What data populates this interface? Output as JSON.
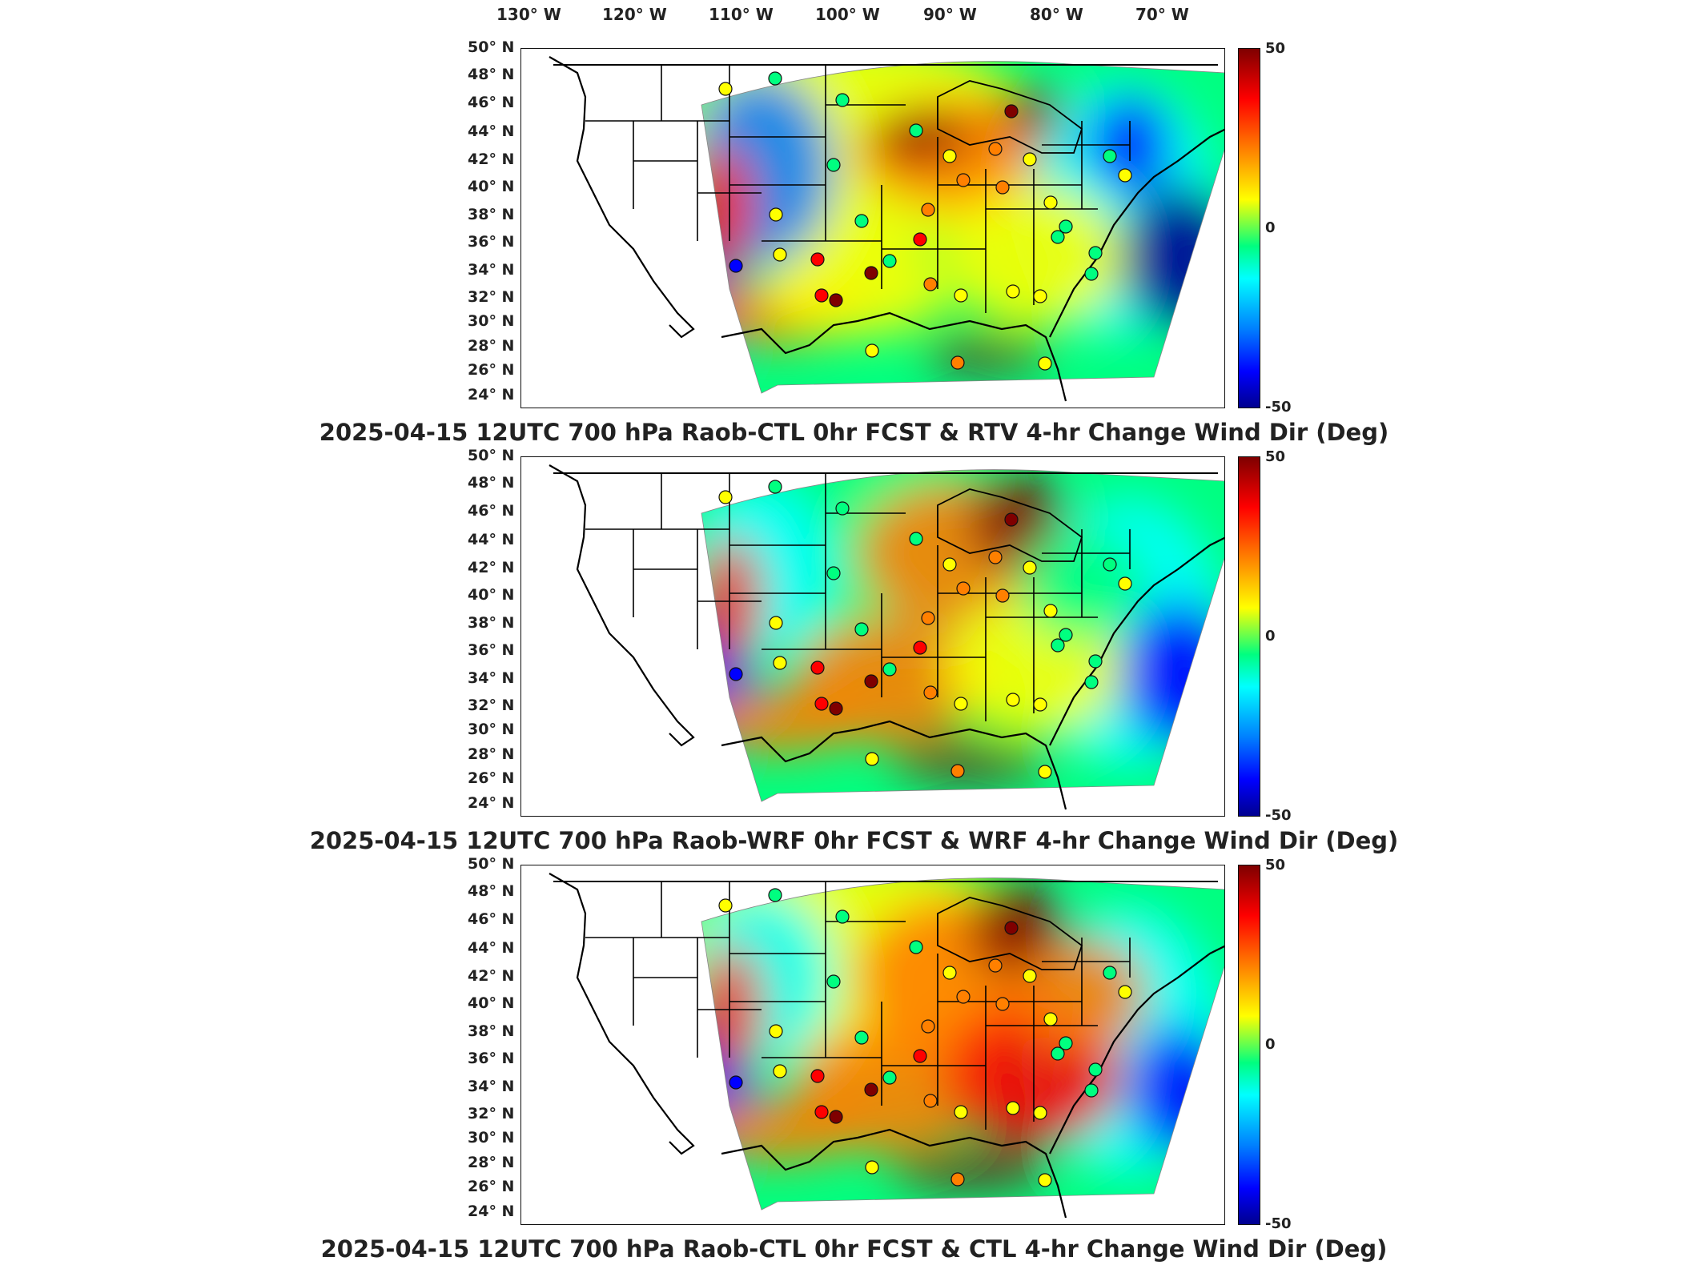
{
  "colormap": [
    "#00008f",
    "#0000ff",
    "#0080ff",
    "#00ffff",
    "#00ff80",
    "#ffff00",
    "#ff8000",
    "#ff0000",
    "#7f0000"
  ],
  "lon_labels": [
    "130° W",
    "120° W",
    "110° W",
    "100° W",
    "90° W",
    "80° W",
    "70° W"
  ],
  "lat_labels": [
    "50° N",
    "48° N",
    "46° N",
    "44° N",
    "42° N",
    "40° N",
    "38° N",
    "36° N",
    "34° N",
    "32° N",
    "30° N",
    "28° N",
    "26° N",
    "24° N"
  ],
  "colorbar": {
    "max": "50",
    "mid": "0",
    "min": "-50"
  },
  "panels": [
    {
      "title": "2025-04-15 12UTC 700 hPa Raob-CTL 0hr FCST & RTV 4-hr Change Wind Dir (Deg)"
    },
    {
      "title": "2025-04-15 12UTC 700 hPa Raob-WRF 0hr FCST & WRF 4-hr Change Wind Dir (Deg)"
    },
    {
      "title": "2025-04-15 12UTC 700 hPa Raob-CTL 0hr FCST & CTL 4-hr Change Wind Dir (Deg)"
    }
  ]
}
